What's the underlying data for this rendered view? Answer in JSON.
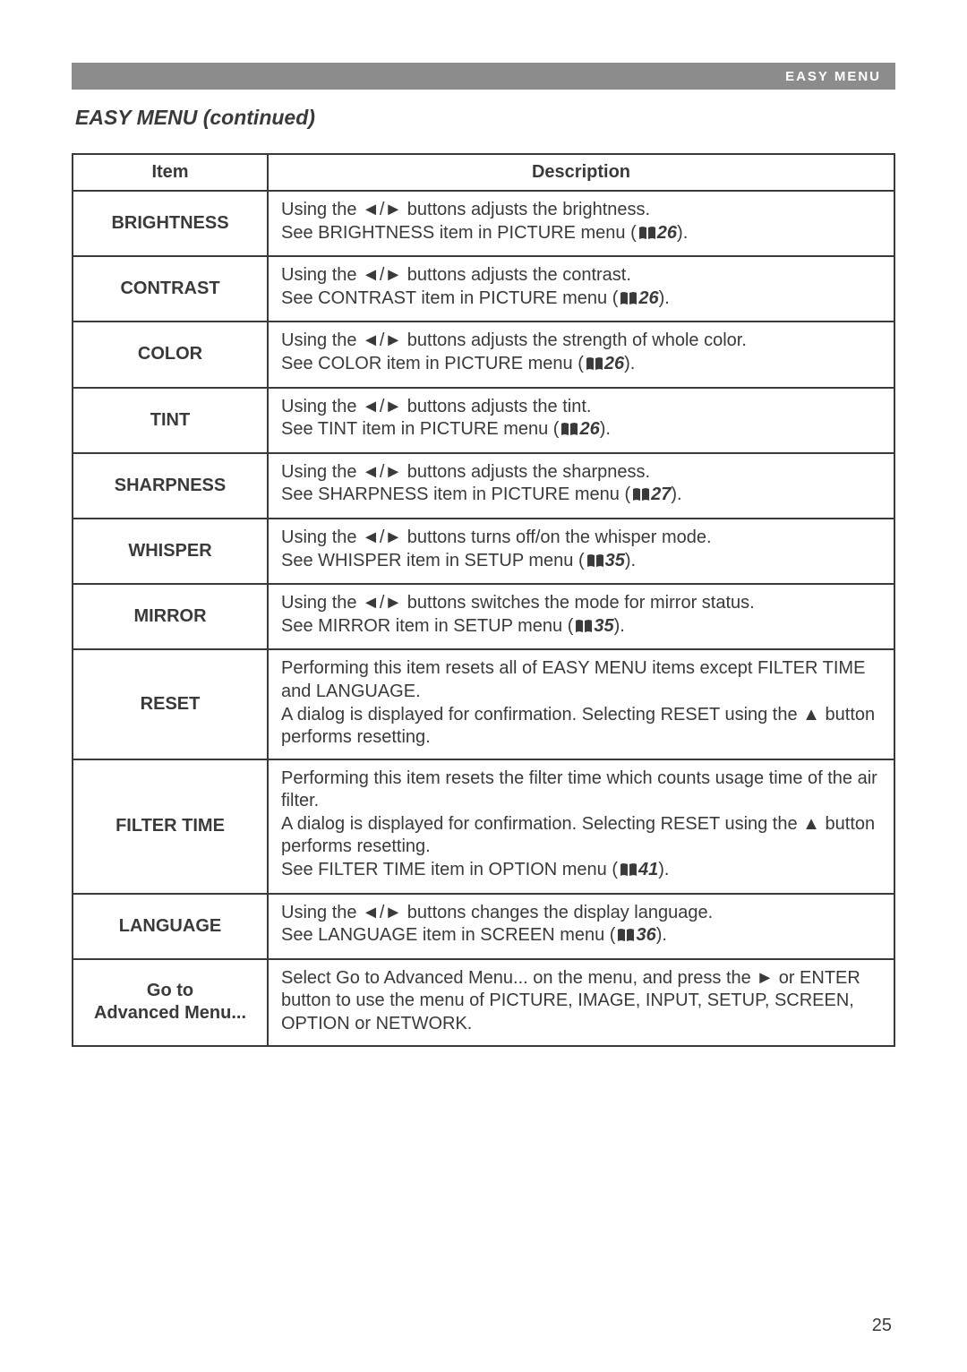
{
  "pageNumber": "25",
  "headerTag": "EASY MENU",
  "sectionTitle": "EASY MENU (continued)",
  "columns": {
    "item": "Item",
    "description": "Description"
  },
  "glyphs": {
    "leftRight": "◄/►",
    "right": "►",
    "up": "▲"
  },
  "style": {
    "borderColor": "#3a3a3a",
    "headerBarBg": "#8c8c8c",
    "headerBarText": "#ffffff",
    "textColor": "#3a3a3a",
    "pageBg": "#ffffff",
    "fontSizeBody": 20,
    "fontSizeTitle": 23
  },
  "rows": [
    {
      "item": "BRIGHTNESS",
      "desc": {
        "segments": [
          [
            {
              "t": "Using the "
            },
            {
              "arrows": true
            },
            {
              "t": " buttons adjusts the brightness."
            }
          ],
          [
            {
              "t": "See BRIGHTNESS item in PICTURE menu ("
            },
            {
              "ref": "26"
            },
            {
              "t": ")."
            }
          ]
        ]
      }
    },
    {
      "item": "CONTRAST",
      "desc": {
        "segments": [
          [
            {
              "t": "Using the "
            },
            {
              "arrows": true
            },
            {
              "t": " buttons adjusts the contrast."
            }
          ],
          [
            {
              "t": "See CONTRAST item in PICTURE menu ("
            },
            {
              "ref": "26"
            },
            {
              "t": ")."
            }
          ]
        ]
      }
    },
    {
      "item": "COLOR",
      "desc": {
        "segments": [
          [
            {
              "t": "Using the "
            },
            {
              "arrows": true
            },
            {
              "t": " buttons adjusts the strength of whole color."
            }
          ],
          [
            {
              "t": "See COLOR item in PICTURE menu ("
            },
            {
              "ref": "26"
            },
            {
              "t": ")."
            }
          ]
        ]
      }
    },
    {
      "item": "TINT",
      "desc": {
        "segments": [
          [
            {
              "t": "Using the "
            },
            {
              "arrows": true
            },
            {
              "t": " buttons adjusts the tint."
            }
          ],
          [
            {
              "t": "See TINT item in PICTURE menu ("
            },
            {
              "ref": "26"
            },
            {
              "t": ")."
            }
          ]
        ]
      }
    },
    {
      "item": "SHARPNESS",
      "desc": {
        "segments": [
          [
            {
              "t": "Using the "
            },
            {
              "arrows": true
            },
            {
              "t": " buttons adjusts the sharpness."
            }
          ],
          [
            {
              "t": "See SHARPNESS item in PICTURE menu ("
            },
            {
              "ref": "27"
            },
            {
              "t": ")."
            }
          ]
        ]
      }
    },
    {
      "item": "WHISPER",
      "desc": {
        "segments": [
          [
            {
              "t": "Using the "
            },
            {
              "arrows": true
            },
            {
              "t": " buttons turns off/on the whisper mode."
            }
          ],
          [
            {
              "t": "See WHISPER item in SETUP menu ("
            },
            {
              "ref": "35"
            },
            {
              "t": ")."
            }
          ]
        ]
      }
    },
    {
      "item": "MIRROR",
      "desc": {
        "segments": [
          [
            {
              "t": "Using the "
            },
            {
              "arrows": true
            },
            {
              "t": " buttons switches the mode for mirror status."
            }
          ],
          [
            {
              "t": "See MIRROR item in SETUP menu ("
            },
            {
              "ref": "35"
            },
            {
              "t": ")."
            }
          ]
        ]
      }
    },
    {
      "item": "RESET",
      "desc": {
        "segments": [
          [
            {
              "t": "Performing this item resets all of EASY MENU items except FILTER TIME and LANGUAGE."
            }
          ],
          [
            {
              "t": "A dialog is displayed for confirmation. Selecting RESET using the "
            },
            {
              "triUp": true
            },
            {
              "t": " button performs resetting."
            }
          ]
        ]
      }
    },
    {
      "item": "FILTER TIME",
      "desc": {
        "segments": [
          [
            {
              "t": "Performing this item resets the filter time which counts usage time of the air filter."
            }
          ],
          [
            {
              "t": "A dialog is displayed for confirmation. Selecting RESET using the "
            },
            {
              "triUp": true
            },
            {
              "t": " button performs resetting."
            }
          ],
          [
            {
              "t": "See FILTER TIME item in OPTION menu ("
            },
            {
              "ref": "41"
            },
            {
              "t": ")."
            }
          ]
        ]
      }
    },
    {
      "item": "LANGUAGE",
      "desc": {
        "segments": [
          [
            {
              "t": "Using the "
            },
            {
              "arrows": true
            },
            {
              "t": " buttons changes the display language."
            }
          ],
          [
            {
              "t": "See LANGUAGE item in SCREEN menu ("
            },
            {
              "ref": "36"
            },
            {
              "t": ")."
            }
          ]
        ]
      }
    },
    {
      "item": "Go to\nAdvanced Menu...",
      "desc": {
        "segments": [
          [
            {
              "t": "Select Go to Advanced Menu... on the menu, and press the "
            },
            {
              "right": true
            },
            {
              "t": " or ENTER button to use the menu of PICTURE, IMAGE, INPUT, SETUP, SCREEN, OPTION or NETWORK."
            }
          ]
        ]
      }
    }
  ]
}
